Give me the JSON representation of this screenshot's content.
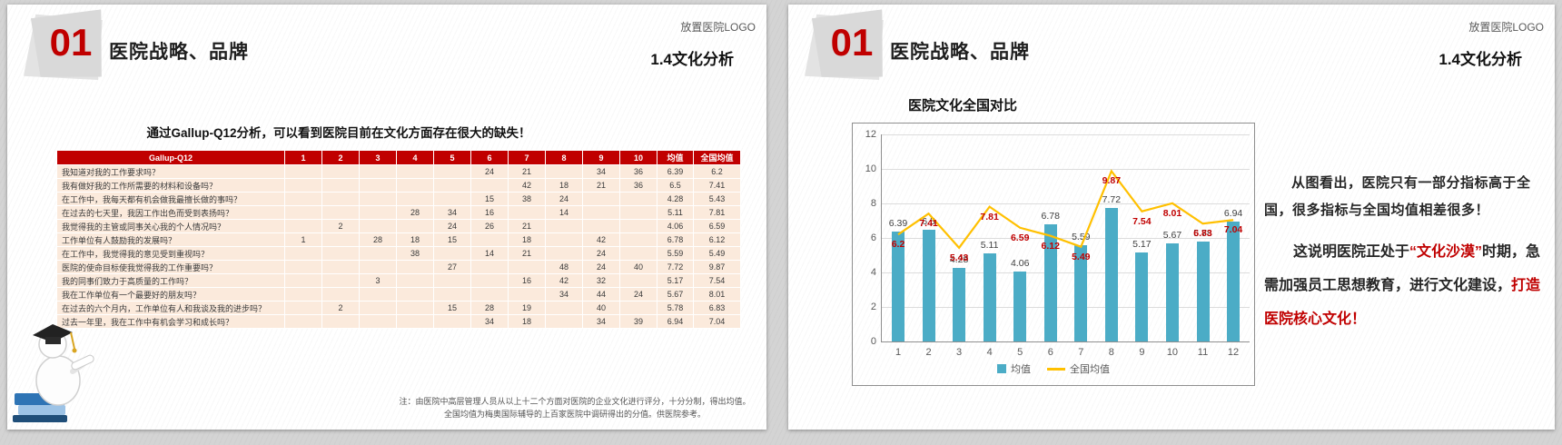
{
  "slide_left": {
    "section_number": "01",
    "section_title": "医院战略、品牌",
    "logo_placeholder": "放置医院LOGO",
    "subtitle": "1.4文化分析",
    "table_title": "通过Gallup-Q12分析，可以看到医院目前在文化方面存在很大的缺失！",
    "table": {
      "header": [
        "Gallup-Q12",
        "1",
        "2",
        "3",
        "4",
        "5",
        "6",
        "7",
        "8",
        "9",
        "10",
        "均值",
        "全国均值"
      ],
      "rows": [
        {
          "question": "我知道对我的工作要求吗？",
          "scores": [
            "",
            "",
            "",
            "",
            "",
            "24",
            "21",
            "",
            "34",
            "36"
          ],
          "mean": "6.39",
          "national": "6.2"
        },
        {
          "question": "我有做好我的工作所需要的材料和设备吗？",
          "scores": [
            "",
            "",
            "",
            "",
            "",
            "",
            "42",
            "18",
            "21",
            "36"
          ],
          "mean": "6.5",
          "national": "7.41"
        },
        {
          "question": "在工作中，我每天都有机会做我最擅长做的事吗？",
          "scores": [
            "",
            "",
            "",
            "",
            "",
            "15",
            "38",
            "24",
            "",
            ""
          ],
          "mean": "4.28",
          "national": "5.43"
        },
        {
          "question": "在过去的七天里，我因工作出色而受到表扬吗？",
          "scores": [
            "",
            "",
            "",
            "28",
            "34",
            "16",
            "",
            "14",
            "",
            ""
          ],
          "mean": "5.11",
          "national": "7.81"
        },
        {
          "question": "我觉得我的主管或同事关心我的个人情况吗？",
          "scores": [
            "",
            "2",
            "",
            "",
            "24",
            "26",
            "21",
            "",
            "",
            ""
          ],
          "mean": "4.06",
          "national": "6.59"
        },
        {
          "question": "工作单位有人鼓励我的发展吗？",
          "scores": [
            "1",
            "",
            "28",
            "18",
            "15",
            "",
            "18",
            "",
            "42",
            ""
          ],
          "mean": "6.78",
          "national": "6.12"
        },
        {
          "question": "在工作中，我觉得我的意见受到重视吗？",
          "scores": [
            "",
            "",
            "",
            "38",
            "",
            "14",
            "21",
            "",
            "24",
            ""
          ],
          "mean": "5.59",
          "national": "5.49"
        },
        {
          "question": "医院的使命目标使我觉得我的工作重要吗？",
          "scores": [
            "",
            "",
            "",
            "",
            "27",
            "",
            "",
            "48",
            "24",
            "40"
          ],
          "mean": "7.72",
          "national": "9.87"
        },
        {
          "question": "我的同事们致力于高质量的工作吗？",
          "scores": [
            "",
            "",
            "3",
            "",
            "",
            "",
            "16",
            "42",
            "32",
            ""
          ],
          "mean": "5.17",
          "national": "7.54"
        },
        {
          "question": "我在工作单位有一个最要好的朋友吗？",
          "scores": [
            "",
            "",
            "",
            "",
            "",
            "",
            "",
            "34",
            "44",
            "24"
          ],
          "mean": "5.67",
          "national": "8.01"
        },
        {
          "question": "在过去的六个月内，工作单位有人和我谈及我的进步吗？",
          "scores": [
            "",
            "2",
            "",
            "",
            "15",
            "28",
            "19",
            "",
            "40",
            ""
          ],
          "mean": "5.78",
          "national": "6.83"
        },
        {
          "question": "过去一年里，我在工作中有机会学习和成长吗？",
          "scores": [
            "",
            "",
            "",
            "",
            "",
            "34",
            "18",
            "",
            "34",
            "39"
          ],
          "mean": "6.94",
          "national": "7.04"
        }
      ]
    },
    "footnote_line1": "注：由医院中高层管理人员从以上十二个方面对医院的企业文化进行评分，十分分制，得出均值。",
    "footnote_line2": "全国均值为梅奥国际辅导的上百家医院中调研得出的分值。供医院参考。"
  },
  "slide_right": {
    "section_number": "01",
    "section_title": "医院战略、品牌",
    "logo_placeholder": "放置医院LOGO",
    "subtitle": "1.4文化分析",
    "chart_title": "医院文化全国对比",
    "commentary": {
      "p1": "从图看出，医院只有一部分指标高于全国，很多指标与全国均值相差很多！",
      "p2_seg1": "这说明医院正处于",
      "p2_seg2": "“文化沙漠”",
      "p2_seg3": "时期，急需加强员工思想教育，进行文化建设，",
      "p2_seg4": "打造医院核心文化！"
    }
  },
  "chart_data": {
    "type": "bar",
    "title": "医院文化全国对比",
    "categories": [
      "1",
      "2",
      "3",
      "4",
      "5",
      "6",
      "7",
      "8",
      "9",
      "10",
      "11",
      "12"
    ],
    "series": [
      {
        "name": "均值",
        "type": "bar",
        "color": "#4BACC6",
        "values": [
          6.39,
          6.5,
          4.28,
          5.11,
          4.06,
          6.78,
          5.59,
          7.72,
          5.17,
          5.67,
          5.78,
          6.94
        ]
      },
      {
        "name": "全国均值",
        "type": "line",
        "color": "#FFC000",
        "label_color": "#C00000",
        "values": [
          6.2,
          7.41,
          5.43,
          7.81,
          6.59,
          6.12,
          5.49,
          9.87,
          7.54,
          8.01,
          6.83,
          7.04
        ]
      }
    ],
    "ylim": [
      0,
      12
    ],
    "yticks": [
      0,
      2,
      4,
      6,
      8,
      10,
      12
    ],
    "grid": true,
    "legend_position": "bottom",
    "data_labels": true
  },
  "colors": {
    "accent_red": "#C00000",
    "bar_blue": "#4BACC6",
    "line_gold": "#FFC000",
    "table_header_bg": "#C00000",
    "table_row_bg": "#FBEADC"
  }
}
